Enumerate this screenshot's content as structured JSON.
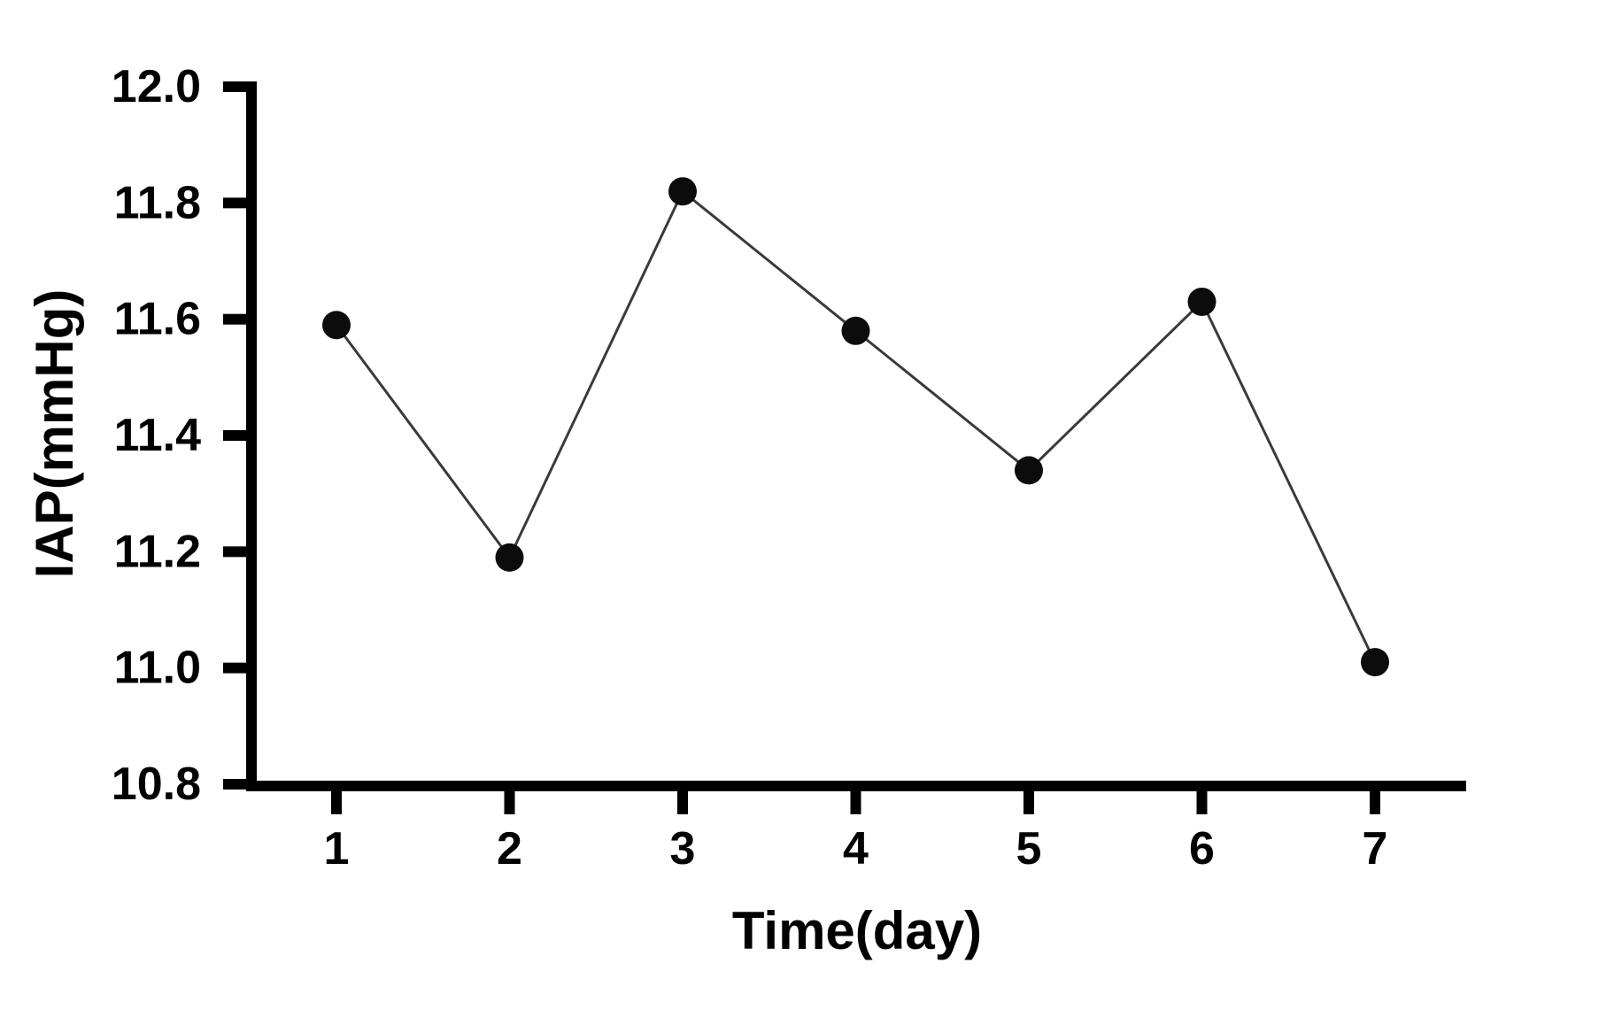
{
  "figure": {
    "background": "#ffffff"
  },
  "chart_data": {
    "type": "line",
    "title": "",
    "x": [
      1,
      2,
      3,
      4,
      5,
      6,
      7
    ],
    "series": [
      {
        "name": "IAP",
        "values": [
          11.59,
          11.19,
          11.82,
          11.58,
          11.34,
          11.63,
          11.01
        ]
      }
    ],
    "xlabel": "Time(day)",
    "ylabel": "IAP(mmHg)",
    "xtick_labels": [
      "1",
      "2",
      "3",
      "4",
      "5",
      "6",
      "7"
    ],
    "ytick_labels": [
      "10.8",
      "11.0",
      "11.2",
      "11.4",
      "11.6",
      "11.8",
      "12.0"
    ],
    "ylim": [
      10.8,
      12.0
    ],
    "ytick_step": 0.2,
    "grid": false,
    "legend": "none",
    "marker": "filled-circle",
    "line_style": "solid-thin",
    "colors": {
      "axis": "#000000",
      "line": "#3a3a3a",
      "marker": "#0c0c0c",
      "text": "#000000",
      "background": "#ffffff"
    }
  }
}
